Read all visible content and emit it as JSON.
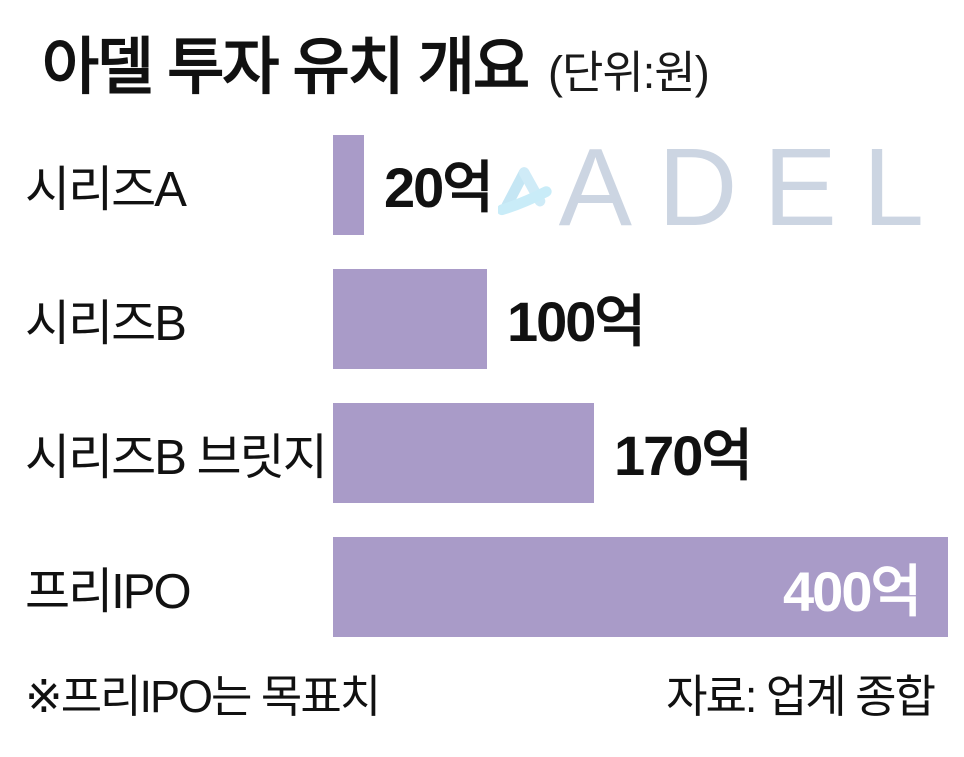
{
  "title": "아델 투자 유치 개요",
  "unit": "(단위:원)",
  "footnote": "※프리IPO는 목표치",
  "source": "자료: 업계 종합",
  "watermark": {
    "brand": "ADEL",
    "mark_icon": "adel-logo-mark",
    "mark_color_light": "#cdeaf7",
    "mark_color_mid": "#bfe4f3",
    "text_color": "#ccd5e2"
  },
  "colors": {
    "bar": "#a99bc8",
    "value_outside": "#111111",
    "value_inside": "#ffffff",
    "background": "#ffffff"
  },
  "chart_data": {
    "type": "bar",
    "orientation": "horizontal",
    "title": "아델 투자 유치 개요",
    "unit": "원",
    "categories": [
      "시리즈A",
      "시리즈B",
      "시리즈B 브릿지",
      "프리IPO"
    ],
    "values": [
      20,
      100,
      170,
      400
    ],
    "value_labels": [
      "20억",
      "100억",
      "170억",
      "400억"
    ],
    "xlim": [
      0,
      400
    ],
    "grid": false,
    "legend": false,
    "notes": "※프리IPO는 목표치",
    "source": "자료: 업계 종합",
    "value_label_position": [
      "outside",
      "outside",
      "outside",
      "inside"
    ]
  }
}
